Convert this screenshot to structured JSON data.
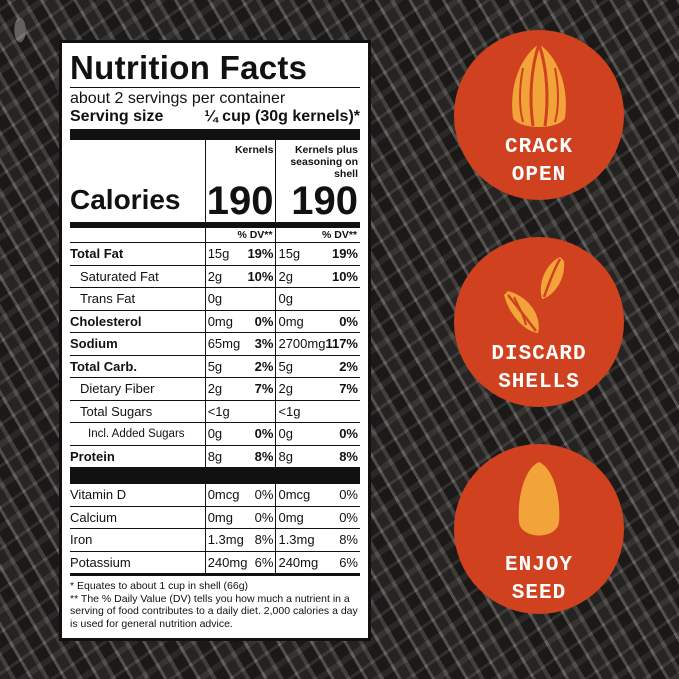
{
  "label": {
    "title": "Nutrition Facts",
    "servings": "about 2 servings per container",
    "serving_size_label": "Serving size",
    "serving_size_value": "¼ cup (30g kernels)*",
    "col1_header": "Kernels",
    "col2_header": "Kernels plus seasoning on shell",
    "calories_label": "Calories",
    "calories_1": "190",
    "calories_2": "190",
    "dv_header": "% DV**",
    "rows": [
      {
        "name": "Total Fat",
        "a": "15g",
        "ap": "19%",
        "b": "15g",
        "bp": "19%"
      },
      {
        "name": "Saturated Fat",
        "a": "2g",
        "ap": "10%",
        "b": "2g",
        "bp": "10%"
      },
      {
        "name": "Trans Fat",
        "a": "0g",
        "ap": "",
        "b": "0g",
        "bp": ""
      },
      {
        "name": "Cholesterol",
        "a": "0mg",
        "ap": "0%",
        "b": "0mg",
        "bp": "0%"
      },
      {
        "name": "Sodium",
        "a": "65mg",
        "ap": "3%",
        "b": "2700mg",
        "bp": "117%"
      },
      {
        "name": "Total Carb.",
        "a": "5g",
        "ap": "2%",
        "b": "5g",
        "bp": "2%"
      },
      {
        "name": "Dietary Fiber",
        "a": "2g",
        "ap": "7%",
        "b": "2g",
        "bp": "7%"
      },
      {
        "name": "Total Sugars",
        "a": "<1g",
        "ap": "",
        "b": "<1g",
        "bp": ""
      },
      {
        "name": "Incl. Added Sugars",
        "a": "0g",
        "ap": "0%",
        "b": "0g",
        "bp": "0%"
      },
      {
        "name": "Protein",
        "a": "8g",
        "ap": "8%",
        "b": "8g",
        "bp": "8%"
      },
      {
        "name": "Vitamin D",
        "a": "0mcg",
        "ap": "0%",
        "b": "0mcg",
        "bp": "0%"
      },
      {
        "name": "Calcium",
        "a": "0mg",
        "ap": "0%",
        "b": "0mg",
        "bp": "0%"
      },
      {
        "name": "Iron",
        "a": "1.3mg",
        "ap": "8%",
        "b": "1.3mg",
        "bp": "8%"
      },
      {
        "name": "Potassium",
        "a": "240mg",
        "ap": "6%",
        "b": "240mg",
        "bp": "6%"
      }
    ],
    "footnote1": "* Equates to about 1 cup in shell (66g)",
    "footnote2": "** The % Daily Value (DV) tells you how much a nutrient in a serving of food contributes to a daily diet. 2,000 calories a day is used for general nutrition advice."
  },
  "steps": [
    {
      "line1": "CRACK",
      "line2": "OPEN",
      "icon": "sunflower-seed-open-icon"
    },
    {
      "line1": "DISCARD",
      "line2": "SHELLS",
      "icon": "seed-shells-icon"
    },
    {
      "line1": "ENJOY",
      "line2": "SEED",
      "icon": "kernel-icon"
    }
  ],
  "colors": {
    "circle": "#d0411f",
    "icon": "#f2a33a",
    "text": "#ffffff"
  }
}
